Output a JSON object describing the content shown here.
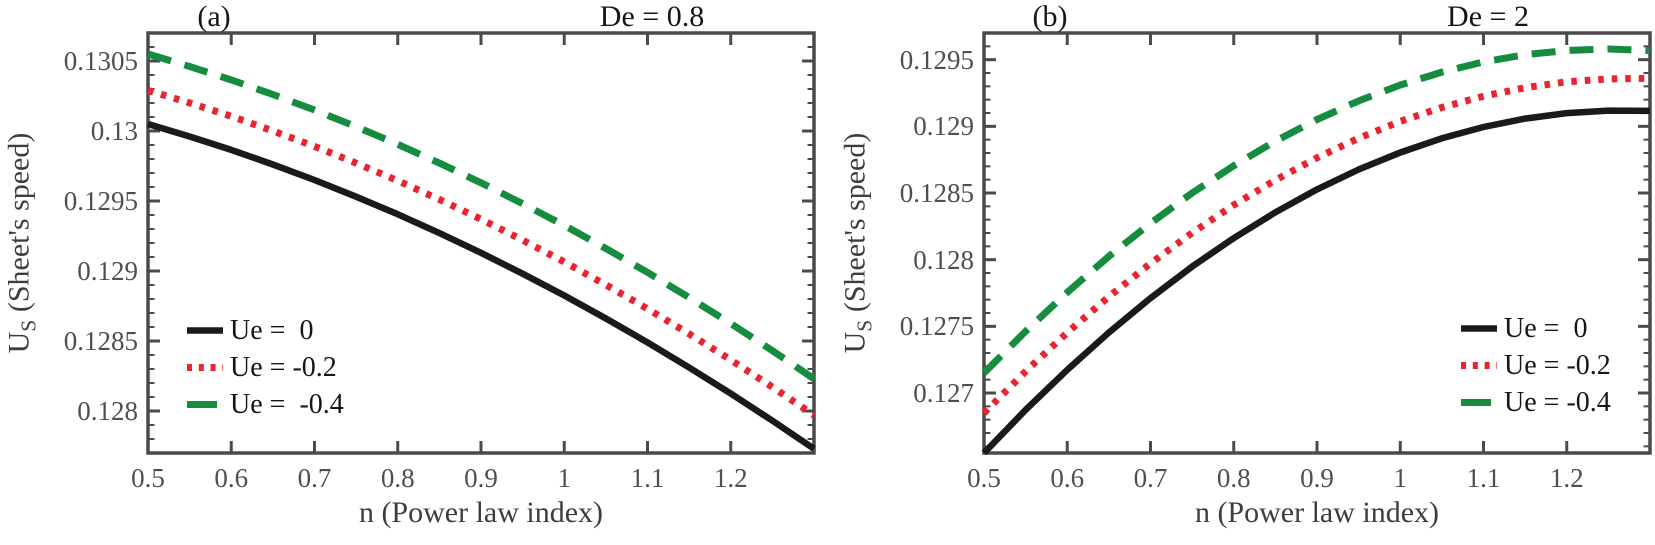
{
  "figure": {
    "background": "#ffffff"
  },
  "colors": {
    "frame": "#4a4a4a",
    "tick_label": "#4f4f4f",
    "axis_label": "#3d3d3d",
    "title": "#161616",
    "legend_text": "#161616",
    "black_curve": "#1a1a1a",
    "red_curve": "#ea2330",
    "green_curve": "#168c3f"
  },
  "chart_data": [
    {
      "type": "line",
      "panel_label": "(a)",
      "annotation": "De = 0.8",
      "xlabel": "n (Power law index)",
      "ylabel": {
        "main": "U",
        "sub": "S",
        "rest": " (Sheet's speed)"
      },
      "xlim": [
        0.5,
        1.3
      ],
      "ylim": [
        0.1277,
        0.1307
      ],
      "grid": false,
      "legend_position": "bottom-left",
      "xticks": {
        "values": [
          0.5,
          0.6,
          0.7,
          0.8,
          0.9,
          1.0,
          1.1,
          1.2
        ],
        "labels": [
          "0.5",
          "0.6",
          "0.7",
          "0.8",
          "0.9",
          "1",
          "1.1",
          "1.2"
        ]
      },
      "yticks": {
        "values": [
          0.128,
          0.1285,
          0.129,
          0.1295,
          0.13,
          0.1305
        ],
        "labels": [
          "0.128",
          "0.1285",
          "0.129",
          "0.1295",
          "0.13",
          "0.1305"
        ],
        "minor_step": 0.0001
      },
      "x": [
        0.5,
        0.55,
        0.6,
        0.65,
        0.7,
        0.75,
        0.8,
        0.85,
        0.9,
        0.95,
        1.0,
        1.05,
        1.1,
        1.15,
        1.2,
        1.25,
        1.3
      ],
      "series": [
        {
          "name": "Ue =  0",
          "color": "#1a1a1a",
          "style": "solid",
          "width": 6.5,
          "values": [
            0.13005,
            0.129961,
            0.129865,
            0.129761,
            0.12965,
            0.129531,
            0.129405,
            0.129271,
            0.12913,
            0.128981,
            0.128825,
            0.128661,
            0.12849,
            0.128311,
            0.128125,
            0.127931,
            0.12773
          ]
        },
        {
          "name": "Ue = -0.2",
          "color": "#ea2330",
          "style": "dotted",
          "width": 7,
          "values": [
            0.13029,
            0.130201,
            0.130105,
            0.130001,
            0.12989,
            0.129771,
            0.129645,
            0.129511,
            0.12937,
            0.129221,
            0.129065,
            0.128901,
            0.12873,
            0.128551,
            0.128365,
            0.128171,
            0.12797
          ]
        },
        {
          "name": "Ue =  -0.4",
          "color": "#168c3f",
          "style": "dashed",
          "width": 7,
          "values": [
            0.13055,
            0.130461,
            0.130365,
            0.130261,
            0.13015,
            0.130031,
            0.129905,
            0.129771,
            0.12963,
            0.129481,
            0.129325,
            0.129161,
            0.12899,
            0.128811,
            0.128625,
            0.128431,
            0.12823
          ]
        }
      ]
    },
    {
      "type": "line",
      "panel_label": "(b)",
      "annotation": "De = 2",
      "xlabel": "n (Power law index)",
      "ylabel": {
        "main": "U",
        "sub": "S",
        "rest": " (Sheet's speed)"
      },
      "xlim": [
        0.5,
        1.3
      ],
      "ylim": [
        0.12655,
        0.1297
      ],
      "grid": false,
      "legend_position": "bottom-right",
      "xticks": {
        "values": [
          0.5,
          0.6,
          0.7,
          0.8,
          0.9,
          1.0,
          1.1,
          1.2
        ],
        "labels": [
          "0.5",
          "0.6",
          "0.7",
          "0.8",
          "0.9",
          "1",
          "1.1",
          "1.2"
        ]
      },
      "yticks": {
        "values": [
          0.127,
          0.1275,
          0.128,
          0.1285,
          0.129,
          0.1295
        ],
        "labels": [
          "0.127",
          "0.1275",
          "0.128",
          "0.1285",
          "0.129",
          "0.1295"
        ],
        "minor_step": 0.0001
      },
      "x": [
        0.5,
        0.55,
        0.6,
        0.65,
        0.7,
        0.75,
        0.8,
        0.85,
        0.9,
        0.95,
        1.0,
        1.05,
        1.1,
        1.15,
        1.2,
        1.25,
        1.3
      ],
      "series": [
        {
          "name": "Ue =  0",
          "color": "#1a1a1a",
          "style": "solid",
          "width": 6.5,
          "values": [
            0.12655,
            0.126873,
            0.127174,
            0.127454,
            0.127712,
            0.127948,
            0.128162,
            0.128355,
            0.128527,
            0.128676,
            0.128804,
            0.12891,
            0.128995,
            0.129058,
            0.129099,
            0.129118,
            0.129116
          ]
        },
        {
          "name": "Ue = -0.2",
          "color": "#ea2330",
          "style": "dotted",
          "width": 7,
          "values": [
            0.12685,
            0.127162,
            0.127453,
            0.127723,
            0.127972,
            0.128201,
            0.12841,
            0.128597,
            0.128764,
            0.128911,
            0.129037,
            0.129142,
            0.129226,
            0.12929,
            0.129334,
            0.129356,
            0.12936
          ]
        },
        {
          "name": "Ue = -0.4",
          "color": "#168c3f",
          "style": "dashed",
          "width": 7,
          "values": [
            0.12715,
            0.127463,
            0.127755,
            0.128025,
            0.128273,
            0.1285,
            0.128705,
            0.128889,
            0.129051,
            0.129191,
            0.12931,
            0.129407,
            0.129483,
            0.129537,
            0.129569,
            0.12958,
            0.129569
          ]
        }
      ]
    }
  ]
}
